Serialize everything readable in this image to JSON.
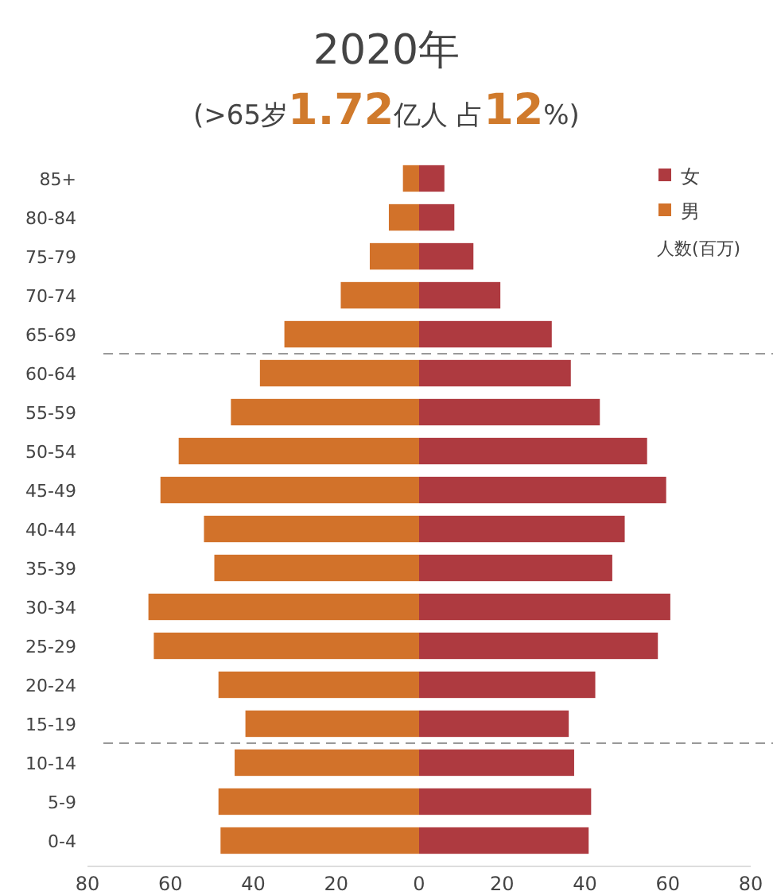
{
  "chart_data": {
    "type": "bar",
    "orientation": "horizontal",
    "stacked": true,
    "title": "2020年",
    "subtitle": "(>65岁1.72亿人 占12%)",
    "xlabel": "人数(百万)",
    "categories": [
      "85+",
      "80-84",
      "75-79",
      "70-74",
      "65-69",
      "60-64",
      "55-59",
      "50-54",
      "45-49",
      "40-44",
      "35-39",
      "30-34",
      "25-29",
      "20-24",
      "15-19",
      "10-14",
      "5-9",
      "0-4"
    ],
    "series": [
      {
        "name": "女",
        "color": "#ae3a40",
        "values": [
          6.1,
          8.5,
          13.1,
          19.6,
          32,
          36.6,
          43.6,
          55,
          59.6,
          49.6,
          46.6,
          60.6,
          57.6,
          42.5,
          36.1,
          37.4,
          41.5,
          40.9
        ]
      },
      {
        "name": "男",
        "color": "#d2722a",
        "values": [
          -3.9,
          -7.3,
          -11.9,
          -18.9,
          -32.5,
          -38.4,
          -45.4,
          -58,
          -62.4,
          -51.9,
          -49.4,
          -65.3,
          -64,
          -48.4,
          -41.9,
          -44.5,
          -48.4,
          -47.9
        ]
      }
    ],
    "xlim": [
      -80,
      80
    ],
    "xticks": [
      {
        "value": -80,
        "label": "80"
      },
      {
        "value": -60,
        "label": "60"
      },
      {
        "value": -40,
        "label": "40"
      },
      {
        "value": -20,
        "label": "20"
      },
      0,
      20,
      40,
      60,
      80
    ],
    "ref_lines": [
      {
        "axis": "y",
        "value": "65-69",
        "line_style": "dashed",
        "color": "#999999"
      },
      {
        "axis": "y",
        "value": "15-19",
        "line_style": "dashed",
        "color": "#999999"
      }
    ],
    "legend": "top right"
  }
}
